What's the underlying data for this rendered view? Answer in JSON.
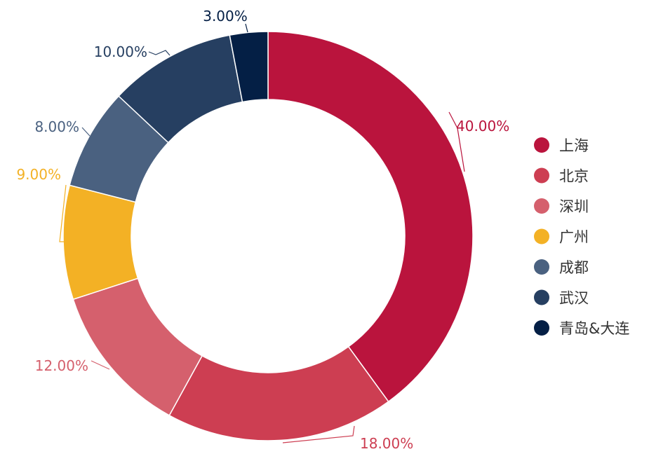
{
  "chart_data": {
    "type": "pie",
    "variant": "donut",
    "title": "",
    "legend_position": "right",
    "categories": [
      "上海",
      "北京",
      "深圳",
      "广州",
      "成都",
      "武汉",
      "青岛&大连"
    ],
    "values": [
      40,
      18,
      12,
      9,
      8,
      10,
      3
    ],
    "labels": [
      "40.00%",
      "18.00%",
      "12.00%",
      "9.00%",
      "8.00%",
      "10.00%",
      "3.00%"
    ],
    "colors": [
      "#BA143D",
      "#CD3E52",
      "#D5606D",
      "#F3B125",
      "#4A6180",
      "#263F61",
      "#041F45"
    ]
  }
}
